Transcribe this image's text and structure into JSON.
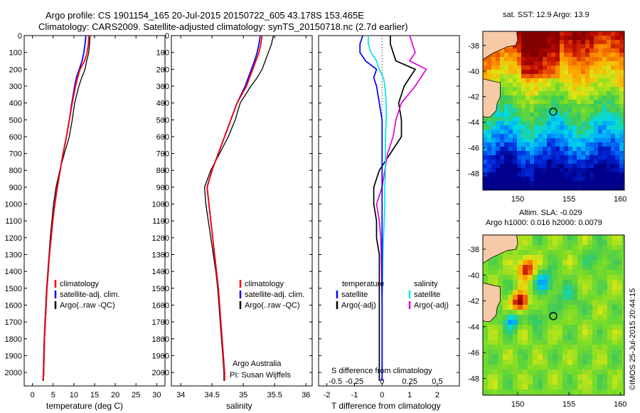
{
  "header": {
    "line1": "Argo profile: CS 1901154_165 20-Jul-2015 20150722_605 43.178S 153.465E",
    "line2": "Climatology: CARS2009. Satellite-adjusted climatology: synTS_20150718.nc (2.7d earlier)"
  },
  "colors": {
    "climatology": "#ff0000",
    "satellite": "#0000ff",
    "argo": "#000000",
    "sal_satellite": "#00e5ee",
    "sal_argo": "#e000e0"
  },
  "depth_axis": {
    "ticks": [
      0,
      100,
      200,
      300,
      400,
      500,
      600,
      700,
      800,
      900,
      1000,
      1100,
      1200,
      1300,
      1400,
      1500,
      1600,
      1700,
      1800,
      1900,
      2000
    ],
    "lim": [
      0,
      2080
    ]
  },
  "chart_data": [
    {
      "type": "line",
      "xlabel": "temperature (deg C)",
      "xticks": [
        0,
        5,
        10,
        15,
        20,
        25,
        30
      ],
      "xlim": [
        -2,
        32
      ],
      "legend": [
        "climatology",
        "satellite-adj. clim.",
        "Argo(..raw -QC)"
      ],
      "depth": [
        0,
        50,
        100,
        150,
        200,
        250,
        300,
        400,
        500,
        600,
        700,
        800,
        900,
        1000,
        1100,
        1200,
        1300,
        1400,
        1500,
        1600,
        1700,
        1800,
        1900,
        2000,
        2050
      ],
      "series": [
        {
          "name": "climatology",
          "values": [
            13.6,
            13.5,
            13.2,
            12.6,
            11.5,
            10.9,
            10.4,
            9.6,
            8.9,
            8.2,
            7.4,
            6.7,
            6.0,
            5.4,
            4.9,
            4.5,
            4.1,
            3.8,
            3.5,
            3.3,
            3.1,
            2.9,
            2.8,
            2.7,
            2.6
          ]
        },
        {
          "name": "satellite-adj. clim.",
          "values": [
            12.9,
            12.7,
            12.4,
            12.0,
            11.3,
            10.6,
            10.2,
            9.5,
            8.9,
            8.2,
            7.4,
            6.7,
            6.0,
            5.4,
            4.9,
            4.5,
            4.1,
            3.8,
            3.5,
            3.3,
            3.1,
            2.9,
            2.8,
            2.7,
            2.6
          ]
        },
        {
          "name": "Argo(..raw -QC)",
          "values": [
            13.9,
            13.8,
            13.6,
            13.1,
            12.7,
            11.9,
            11.2,
            10.2,
            9.6,
            8.9,
            7.7,
            6.6,
            5.7,
            5.1,
            4.7,
            4.3,
            4.0,
            3.7,
            3.4,
            3.2,
            3.0,
            2.8,
            2.7,
            2.6,
            2.5
          ]
        }
      ]
    },
    {
      "type": "line",
      "xlabel": "salinity",
      "xticks": [
        34,
        34.5,
        35,
        35.5,
        36
      ],
      "xlim": [
        33.85,
        36.1
      ],
      "legend": [
        "climatology",
        "satellite-adj. clim.",
        "Argo(..raw -QC)"
      ],
      "annotation": [
        "Argo Australia",
        "PI: Susan Wijffels"
      ],
      "depth": [
        0,
        50,
        100,
        150,
        200,
        250,
        300,
        400,
        500,
        600,
        700,
        800,
        900,
        1000,
        1100,
        1200,
        1300,
        1400,
        1500,
        1600,
        1700,
        1800,
        1900,
        2000,
        2050
      ],
      "series": [
        {
          "name": "climatology",
          "values": [
            35.3,
            35.28,
            35.25,
            35.2,
            35.15,
            35.1,
            35.05,
            34.9,
            34.8,
            34.7,
            34.6,
            34.5,
            34.42,
            34.45,
            34.48,
            34.51,
            34.54,
            34.57,
            34.6,
            34.62,
            34.64,
            34.66,
            34.68,
            34.7,
            34.7
          ]
        },
        {
          "name": "satellite-adj. clim.",
          "values": [
            35.27,
            35.25,
            35.22,
            35.18,
            35.13,
            35.08,
            35.03,
            34.9,
            34.8,
            34.7,
            34.6,
            34.5,
            34.42,
            34.45,
            34.48,
            34.51,
            34.54,
            34.57,
            34.6,
            34.62,
            34.64,
            34.66,
            34.68,
            34.7,
            34.7
          ]
        },
        {
          "name": "Argo(..raw -QC)",
          "values": [
            35.48,
            35.45,
            35.4,
            35.35,
            35.3,
            35.22,
            35.12,
            34.95,
            34.87,
            34.76,
            34.62,
            34.48,
            34.38,
            34.4,
            34.44,
            34.48,
            34.52,
            34.56,
            34.59,
            34.61,
            34.63,
            34.65,
            34.67,
            34.69,
            34.69
          ]
        }
      ]
    },
    {
      "type": "line",
      "xlabel": "T difference from climatology",
      "xlabel_top": "S difference from climatology",
      "xticks": [
        -2,
        -1,
        0,
        1,
        2
      ],
      "xticks_top": [
        "-0.5",
        "-0.25",
        "0",
        "0.25",
        "0.5"
      ],
      "xlim": [
        -2.3,
        2.8
      ],
      "legend_temperature": {
        "title": "temperature",
        "items": [
          "satellite",
          "Argo(-adj)"
        ]
      },
      "legend_salinity": {
        "title": "salinity",
        "items": [
          "satellite",
          "Argo(-adj)"
        ]
      },
      "depth": [
        0,
        50,
        100,
        150,
        200,
        250,
        300,
        400,
        500,
        600,
        700,
        800,
        900,
        1000,
        1100,
        1200,
        1300,
        1400,
        1500,
        1600,
        1700,
        1800,
        1900,
        2000,
        2050
      ],
      "series": [
        {
          "name": "temperature satellite",
          "values": [
            -0.7,
            -0.8,
            -0.8,
            -0.6,
            -0.2,
            -0.3,
            -0.2,
            -0.1,
            0,
            0,
            0,
            0,
            0,
            0,
            0,
            0,
            0,
            0,
            0,
            0,
            0,
            0,
            0,
            0,
            0
          ]
        },
        {
          "name": "temperature Argo(-adj)",
          "values": [
            0.3,
            0.3,
            0.4,
            0.5,
            1.2,
            1.0,
            0.8,
            0.6,
            0.7,
            0.7,
            0.3,
            -0.1,
            -0.3,
            -0.3,
            -0.2,
            -0.2,
            -0.1,
            -0.1,
            -0.1,
            -0.1,
            -0.1,
            -0.1,
            -0.1,
            -0.1,
            -0.1
          ]
        },
        {
          "name": "salinity satellite",
          "values": [
            -0.5,
            -0.5,
            -0.4,
            -0.2,
            -0.1,
            0.05,
            0.1,
            0.15,
            0.15,
            0.12,
            0.12,
            0.12,
            0.1,
            0.1,
            0.08,
            0.05,
            0.03,
            0.02,
            0.01,
            0,
            0,
            0,
            0,
            0,
            0
          ]
        },
        {
          "name": "salinity Argo(-adj)",
          "values": [
            1.0,
            1.1,
            1.2,
            1.0,
            1.6,
            1.4,
            1.2,
            0.7,
            0.5,
            0.4,
            0.2,
            0.1,
            0,
            -0.2,
            -0.1,
            -0.05,
            -0.03,
            -0.02,
            -0.01,
            0,
            0,
            0,
            0,
            0,
            0
          ]
        }
      ]
    },
    {
      "type": "heatmap",
      "title": "sat. SST: 12.9  Argo: 13.9",
      "xticks": [
        150,
        155,
        160
      ],
      "yticks": [
        -38,
        -40,
        -42,
        -44,
        -46,
        -48
      ],
      "xlim": [
        146.6,
        160.4
      ],
      "ylim": [
        -49.3,
        -36.9
      ],
      "argo_position": [
        153.465,
        -43.178
      ]
    },
    {
      "type": "heatmap",
      "title": "Altim. SLA: -0.029",
      "subtitle": "Argo h1000: 0.016 h2000: 0.0079",
      "xticks": [
        150,
        155,
        160
      ],
      "yticks": [
        -38,
        -40,
        -42,
        -44,
        -46,
        -48
      ],
      "xlim": [
        146.6,
        160.4
      ],
      "ylim": [
        -49.3,
        -36.9
      ],
      "argo_position": [
        153.465,
        -43.178
      ]
    }
  ],
  "credit": "©IMOS 25-Jul-2015 20:44:15"
}
